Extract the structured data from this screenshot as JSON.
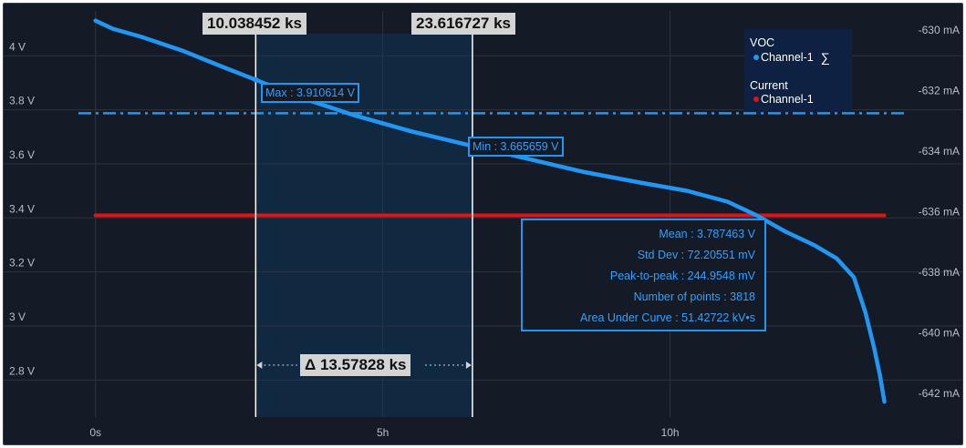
{
  "chart_data": {
    "type": "line",
    "x_axis": {
      "unit": "h",
      "ticks": [
        "0s",
        "5h",
        "10h"
      ],
      "tick_values": [
        0,
        5,
        10
      ],
      "range": [
        -0.9,
        14.15
      ]
    },
    "y_axis_left": {
      "name": "VOC",
      "ticks": [
        "4 V",
        "3.8 V",
        "3.6 V",
        "3.4 V",
        "3.2 V",
        "3 V",
        "2.8 V"
      ],
      "tick_values": [
        4.0,
        3.8,
        3.6,
        3.4,
        3.2,
        3.0,
        2.8
      ],
      "range": [
        2.663,
        4.166
      ]
    },
    "y_axis_right": {
      "name": "Current",
      "ticks": [
        "-630 mA",
        "-632 mA",
        "-634 mA",
        "-636 mA",
        "-638 mA",
        "-640 mA",
        "-642 mA"
      ],
      "tick_values": [
        -630,
        -632,
        -634,
        -636,
        -638,
        -640,
        -642
      ]
    },
    "series": [
      {
        "name": "Channel-1",
        "group": "VOC",
        "axis": "left",
        "color": "#2196f3",
        "x": [
          0,
          0.3,
          0.8,
          1.5,
          2.2,
          2.79,
          3.5,
          4.5,
          5.5,
          6.56,
          7.5,
          8.5,
          9.5,
          10.3,
          11.0,
          11.5,
          12.0,
          12.5,
          12.9,
          13.2,
          13.4,
          13.55,
          13.65,
          13.73
        ],
        "y": [
          4.13,
          4.1,
          4.07,
          4.02,
          3.96,
          3.911,
          3.85,
          3.78,
          3.72,
          3.666,
          3.62,
          3.57,
          3.53,
          3.5,
          3.46,
          3.41,
          3.35,
          3.3,
          3.25,
          3.18,
          3.05,
          2.92,
          2.82,
          2.72
        ]
      },
      {
        "name": "Channel-1",
        "group": "Current",
        "axis": "right",
        "color": "#e11414",
        "x": [
          0,
          13.73
        ],
        "y": [
          -636,
          -636
        ]
      }
    ],
    "reference_line": {
      "axis": "left",
      "value": 3.787463,
      "style": "dash-dot",
      "color": "#2196f3"
    },
    "cursors": [
      {
        "x": 2.7885,
        "label": "10.038452 ks"
      },
      {
        "x": 6.5602,
        "label": "23.616727 ks"
      }
    ],
    "markers": {
      "max": {
        "x": 2.79,
        "y": 3.910614,
        "label": "Max : 3.910614 V"
      },
      "min": {
        "x": 6.56,
        "y": 3.665659,
        "label": "Min : 3.665659 V"
      }
    },
    "delta_label": "Δ 13.57828 ks",
    "statistics": [
      "Mean : 3.787463 V",
      "Std Dev : 72.20551 mV",
      "Peak-to-peak : 244.9548 mV",
      "Number of points : 3818",
      "Area Under Curve : 51.42722 kV•s"
    ],
    "legend": {
      "placement": "top-right",
      "groups": [
        {
          "title": "VOC",
          "items": [
            {
              "label": "Channel-1",
              "color": "#2196f3",
              "extra": "∑"
            }
          ]
        },
        {
          "title": "Current",
          "items": [
            {
              "label": "Channel-1",
              "color": "#e11414"
            }
          ]
        }
      ]
    },
    "grid": true
  }
}
